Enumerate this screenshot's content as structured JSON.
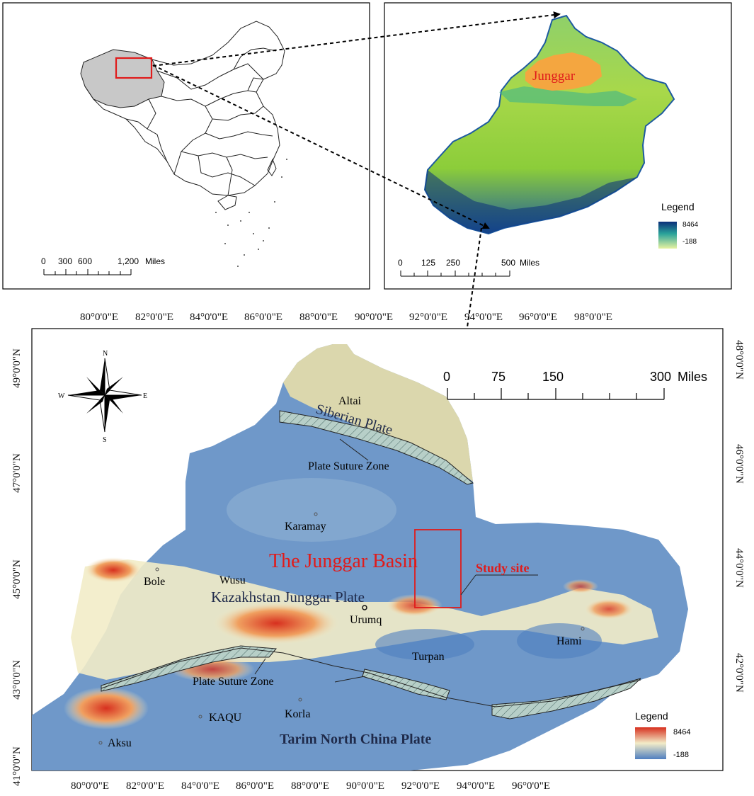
{
  "china_inset": {
    "scale": {
      "ticks": [
        "0",
        "300",
        "600",
        "1,200"
      ],
      "unit": "Miles"
    }
  },
  "xinjiang_inset": {
    "region_label": "Junggar",
    "scale": {
      "ticks": [
        "0",
        "125",
        "250",
        "500"
      ],
      "unit": "Miles"
    },
    "legend": {
      "title": "Legend",
      "max": "8464",
      "min": "-188"
    }
  },
  "main_map": {
    "top_lon_labels": [
      "80°0'0\"E",
      "82°0'0\"E",
      "84°0'0\"E",
      "86°0'0\"E",
      "88°0'0\"E",
      "90°0'0\"E",
      "92°0'0\"E",
      "94°0'0\"E",
      "96°0'0\"E",
      "98°0'0\"E"
    ],
    "bottom_lon_labels": [
      "80°0'0\"E",
      "82°0'0\"E",
      "84°0'0\"E",
      "86°0'0\"E",
      "88°0'0\"E",
      "90°0'0\"E",
      "92°0'0\"E",
      "94°0'0\"E",
      "96°0'0\"E"
    ],
    "left_lat_labels": [
      "49°0'0\"N",
      "47°0'0\"N",
      "45°0'0\"N",
      "43°0'0\"N",
      "41°0'0\"N"
    ],
    "right_lat_labels": [
      "48°0'0\"N",
      "46°0'0\"N",
      "44°0'0\"N",
      "42°0'0\"N"
    ],
    "compass": {
      "n": "N",
      "s": "S",
      "e": "E",
      "w": "W"
    },
    "scale": {
      "ticks": [
        "0",
        "75",
        "150",
        "300"
      ],
      "unit": "Miles"
    },
    "labels": {
      "altai": "Altai",
      "siberian_plate": "Siberian Plate",
      "suture_north": "Plate Suture Zone",
      "karamay": "Karamay",
      "basin": "The Junggar Basin",
      "study_site": "Study site",
      "bole": "Bole",
      "wusu": "Wusu",
      "kazakhstan_plate": "Kazakhstan Junggar Plate",
      "urumq": "Urumq",
      "hami": "Hami",
      "turpan": "Turpan",
      "suture_south": "Plate Suture Zone",
      "kaqu": "KAQU",
      "korla": "Korla",
      "aksu": "Aksu",
      "tarim_plate": "Tarim North China Plate"
    },
    "legend": {
      "title": "Legend",
      "max": "8464",
      "min": "-188"
    }
  },
  "colors": {
    "highlight_red": "#e01b1b",
    "junggar_orange": "#f4a640",
    "plate_text": "#1f2a4a",
    "dem_low": "#4f7fc0",
    "dem_mid": "#f2ecc8",
    "dem_high": "#d7301f",
    "inset_high": "#0b2f7a",
    "inset_low": "#e6f2a0"
  }
}
